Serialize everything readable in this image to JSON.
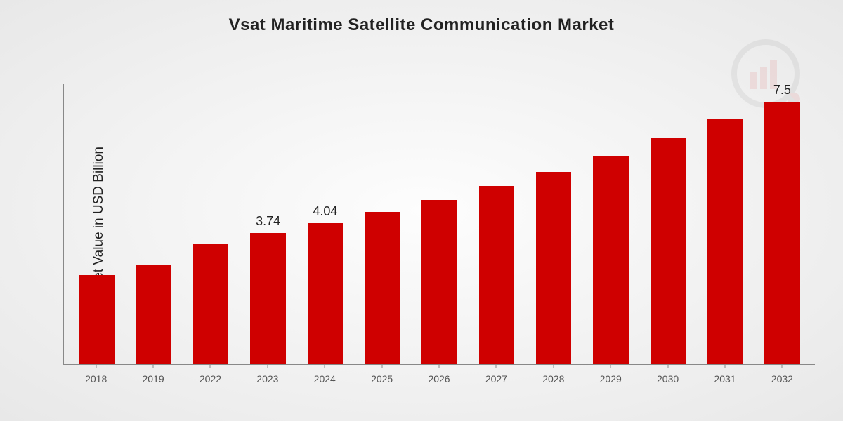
{
  "title": {
    "text": "Vsat Maritime Satellite Communication Market",
    "fontsize": 24,
    "fontweight": "bold",
    "color": "#222222"
  },
  "ylabel": {
    "text": "Market Value in USD Billion",
    "fontsize": 19,
    "color": "#222222"
  },
  "chart": {
    "type": "bar",
    "categories": [
      "2018",
      "2019",
      "2022",
      "2023",
      "2024",
      "2025",
      "2026",
      "2027",
      "2028",
      "2029",
      "2030",
      "2031",
      "2032"
    ],
    "values": [
      2.55,
      2.82,
      3.42,
      3.74,
      4.04,
      4.36,
      4.7,
      5.1,
      5.5,
      5.95,
      6.45,
      7.0,
      7.5
    ],
    "value_labels": [
      "",
      "",
      "",
      "3.74",
      "4.04",
      "",
      "",
      "",
      "",
      "",
      "",
      "",
      "7.5"
    ],
    "ylim": [
      0,
      8
    ],
    "bar_color": "#cf0000",
    "bar_width_pct": 62,
    "axis_color": "#888888",
    "xtick_fontsize": 14,
    "xtick_color": "#555555",
    "bar_label_fontsize": 18,
    "bar_label_color": "#222222",
    "background": "radial-gradient(#fdfdfd, #e8e8e8)"
  },
  "watermark": {
    "name": "logo-watermark",
    "opacity": 0.08,
    "bars_color": "#cf0000",
    "ring_color": "#555555",
    "dot_color": "#cf0000"
  }
}
